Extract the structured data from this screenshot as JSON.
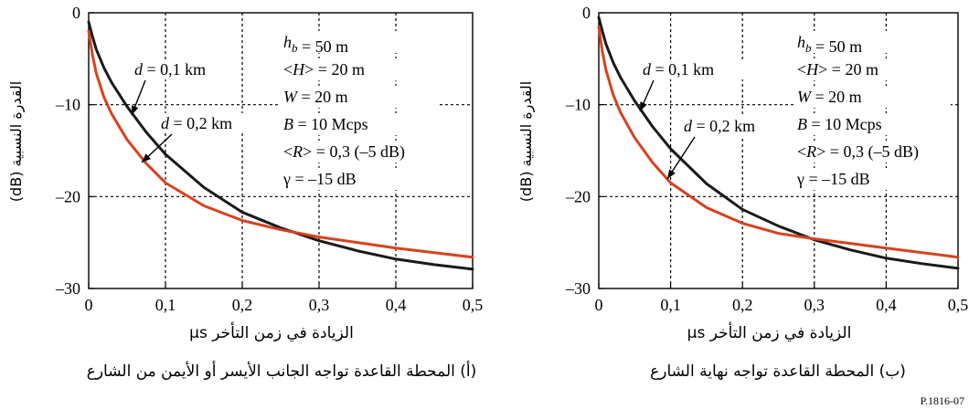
{
  "figure_id": "P.1816-07",
  "chart_data": [
    {
      "type": "line",
      "title": "",
      "caption": "(أ) المحطة القاعدة تواجه الجانب الأيسر أو الأيمن من الشارع",
      "xlabel": "الزيادة في زمن التأخر µs",
      "ylabel": "القدرة النسبية (dB)",
      "xlim": [
        0,
        0.5
      ],
      "ylim": [
        -30,
        0
      ],
      "xticks": [
        "0",
        "0,1",
        "0,2",
        "0,3",
        "0,4",
        "0,5"
      ],
      "yticks": [
        "0",
        "–10",
        "–20",
        "–30"
      ],
      "grid": true,
      "params": [
        {
          "sym": "h",
          "sub": "b",
          "rest": " = 50 m"
        },
        {
          "sym": "",
          "sub": "",
          "rest": "<H> = 20 m",
          "italic_part": "H"
        },
        {
          "sym": "W",
          "sub": "",
          "rest": " = 20 m"
        },
        {
          "sym": "B",
          "sub": "",
          "rest": " = 10 Mcps"
        },
        {
          "sym": "",
          "sub": "",
          "rest": "<R> = 0,3 (–5 dB)",
          "italic_part": "R"
        },
        {
          "sym": "γ",
          "sub": "",
          "rest": " = –15 dB"
        }
      ],
      "series": [
        {
          "name": "d = 0,1 km",
          "color": "#1a1a1a",
          "x": [
            0,
            0.005,
            0.01,
            0.02,
            0.03,
            0.05,
            0.075,
            0.1,
            0.15,
            0.2,
            0.25,
            0.3,
            0.35,
            0.4,
            0.45,
            0.5
          ],
          "y": [
            -1.0,
            -2.6,
            -4.0,
            -6.0,
            -7.6,
            -10.2,
            -13.0,
            -15.4,
            -19.0,
            -21.7,
            -23.4,
            -24.8,
            -25.9,
            -26.8,
            -27.4,
            -27.9
          ]
        },
        {
          "name": "d = 0,2 km",
          "color": "#d9411e",
          "x": [
            0,
            0.005,
            0.01,
            0.02,
            0.03,
            0.05,
            0.075,
            0.1,
            0.15,
            0.2,
            0.25,
            0.3,
            0.35,
            0.4,
            0.45,
            0.5
          ],
          "y": [
            -2.0,
            -4.6,
            -6.6,
            -9.2,
            -11.0,
            -13.8,
            -16.4,
            -18.5,
            -21.0,
            -22.6,
            -23.6,
            -24.4,
            -25.0,
            -25.6,
            -26.1,
            -26.6
          ]
        }
      ]
    },
    {
      "type": "line",
      "title": "",
      "caption": "(ب) المحطة القاعدة تواجه نهاية الشارع",
      "xlabel": "الزيادة في زمن التأخر µs",
      "ylabel": "القدرة النسبية (dB)",
      "xlim": [
        0,
        0.5
      ],
      "ylim": [
        -30,
        0
      ],
      "xticks": [
        "0",
        "0,1",
        "0,2",
        "0,3",
        "0,4",
        "0,5"
      ],
      "yticks": [
        "0",
        "–10",
        "–20",
        "–30"
      ],
      "grid": true,
      "params": [
        {
          "sym": "h",
          "sub": "b",
          "rest": " = 50 m"
        },
        {
          "sym": "",
          "sub": "",
          "rest": "<H> = 20 m",
          "italic_part": "H"
        },
        {
          "sym": "W",
          "sub": "",
          "rest": " = 20 m"
        },
        {
          "sym": "B",
          "sub": "",
          "rest": " = 10 Mcps"
        },
        {
          "sym": "",
          "sub": "",
          "rest": "<R> = 0,3 (–5 dB)",
          "italic_part": "R"
        },
        {
          "sym": "γ",
          "sub": "",
          "rest": " = –15 dB"
        }
      ],
      "series": [
        {
          "name": "d = 0,1 km",
          "color": "#1a1a1a",
          "x": [
            0,
            0.005,
            0.01,
            0.02,
            0.03,
            0.05,
            0.075,
            0.1,
            0.15,
            0.2,
            0.25,
            0.3,
            0.35,
            0.4,
            0.45,
            0.5
          ],
          "y": [
            -0.5,
            -2.0,
            -3.4,
            -5.4,
            -7.0,
            -9.6,
            -12.4,
            -14.8,
            -18.6,
            -21.4,
            -23.2,
            -24.7,
            -25.8,
            -26.7,
            -27.3,
            -27.8
          ]
        },
        {
          "name": "d = 0,2 km",
          "color": "#d9411e",
          "x": [
            0,
            0.005,
            0.01,
            0.02,
            0.03,
            0.05,
            0.075,
            0.1,
            0.15,
            0.2,
            0.25,
            0.3,
            0.35,
            0.4,
            0.45,
            0.5
          ],
          "y": [
            -1.5,
            -4.2,
            -6.2,
            -8.9,
            -10.8,
            -13.6,
            -16.3,
            -18.5,
            -21.2,
            -22.9,
            -24.0,
            -24.6,
            -25.1,
            -25.6,
            -26.1,
            -26.6
          ]
        }
      ]
    }
  ]
}
